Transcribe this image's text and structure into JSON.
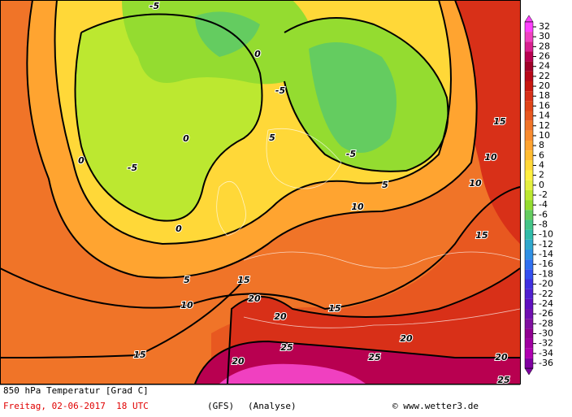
{
  "map": {
    "footer": {
      "title": "850 hPa Temperatur [Grad C]",
      "date": "Freitag, 02-06-2017  18 UTC",
      "model": "(GFS)",
      "analysis": "(Analyse)",
      "credit": "© www.wetter3.de"
    },
    "legend": {
      "values": [
        32,
        30,
        28,
        26,
        24,
        22,
        20,
        18,
        16,
        14,
        12,
        10,
        8,
        6,
        4,
        2,
        0,
        -2,
        -4,
        -6,
        -8,
        -10,
        -12,
        -14,
        -16,
        -18,
        -20,
        -22,
        -24,
        -26,
        -28,
        -30,
        -32,
        -34,
        -36
      ],
      "colors": [
        "#ff40ff",
        "#f040c0",
        "#d82090",
        "#b80050",
        "#a00028",
        "#b80818",
        "#c81810",
        "#d83018",
        "#e04418",
        "#e85820",
        "#f07428",
        "#f88c30",
        "#ffa430",
        "#ffbc30",
        "#ffd838",
        "#fff040",
        "#e4f040",
        "#bce830",
        "#94dc30",
        "#64cc60",
        "#44c488",
        "#30bcaa",
        "#30a8cc",
        "#3090e4",
        "#3070f0",
        "#3450f0",
        "#4030e0",
        "#5020d0",
        "#6010c0",
        "#7010b0",
        "#8010a0",
        "#900090",
        "#a000a0",
        "#b000b0",
        "#8000a0"
      ]
    },
    "contour_labels": [
      "-5",
      "-5",
      "-5",
      "-5",
      "0",
      "0",
      "0",
      "0",
      "5",
      "5",
      "5",
      "10",
      "10",
      "10",
      "10",
      "15",
      "15",
      "15",
      "15",
      "15",
      "20",
      "20",
      "20",
      "20",
      "20",
      "25",
      "25",
      "25"
    ]
  }
}
